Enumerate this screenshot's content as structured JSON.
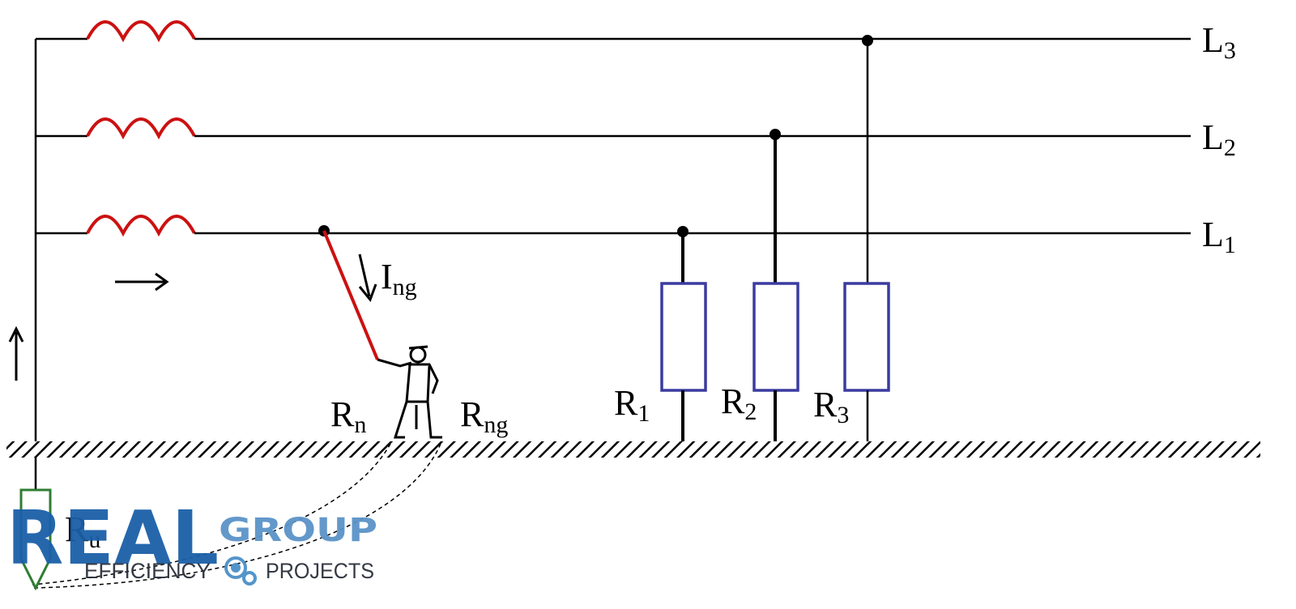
{
  "phases": [
    {
      "label": "L",
      "sub": "3"
    },
    {
      "label": "L",
      "sub": "2"
    },
    {
      "label": "L",
      "sub": "1"
    }
  ],
  "resistors": [
    {
      "label": "R",
      "sub": "1"
    },
    {
      "label": "R",
      "sub": "2"
    },
    {
      "label": "R",
      "sub": "3"
    }
  ],
  "fault_current": {
    "label": "I",
    "sub": "ng"
  },
  "person": {
    "left": {
      "label": "R",
      "sub": "n"
    },
    "right": {
      "label": "R",
      "sub": "ng"
    }
  },
  "source_ground": {
    "label": "R",
    "sub": "u"
  },
  "colors": {
    "coil": "#cc1111",
    "fault_wire": "#cc1111",
    "resistor": "#3b3ba0",
    "ground_electrode": "#2e7d32",
    "logo_primary": "#1b5fa8",
    "logo_secondary": "#5b93c8"
  },
  "logo": {
    "main": "REAL",
    "second": "GROUP",
    "tagline_left": "EFFICIENCY",
    "tagline_right": "PROJECTS",
    "icon": "gears-icon"
  }
}
